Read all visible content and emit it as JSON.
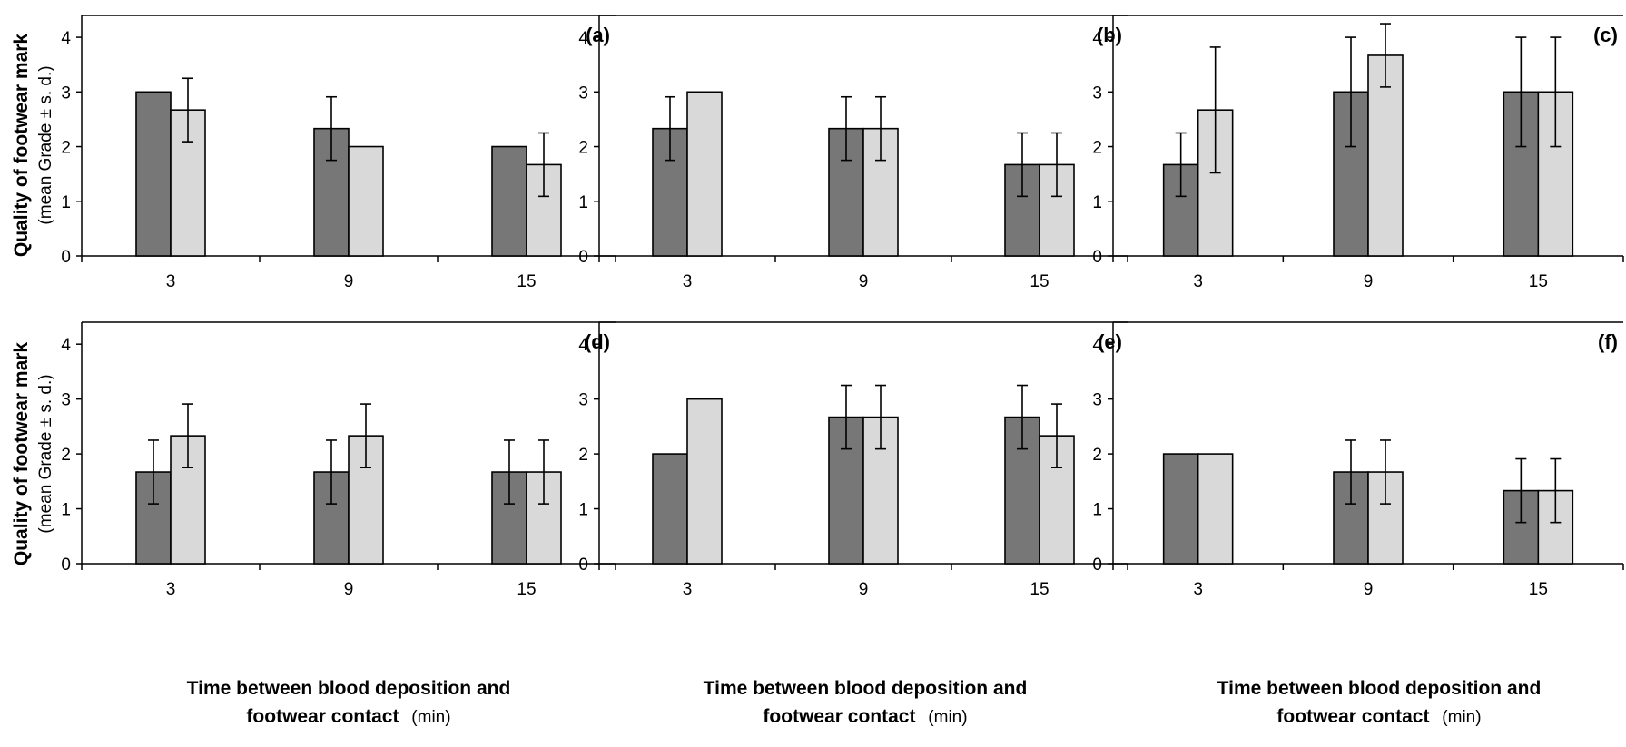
{
  "figure": {
    "ylabel_bold": "Quality of footwear mark",
    "ylabel_normal": "(mean Grade ± s. d.)",
    "xlabel_bold_line1": "Time between blood deposition and",
    "xlabel_bold_line2": "footwear contact",
    "xlabel_unit": "(min)"
  },
  "chart_data": [
    {
      "type": "bar",
      "panel_label": "(a)",
      "categories": [
        "3",
        "9",
        "15"
      ],
      "ylim": [
        0,
        4.4
      ],
      "yticks": [
        0,
        1,
        2,
        3,
        4
      ],
      "series": [
        {
          "color": "#777777",
          "values": [
            3.0,
            2.33,
            2.0
          ],
          "errors": [
            0,
            0.58,
            0
          ]
        },
        {
          "color": "#d9d9d9",
          "values": [
            2.67,
            2.0,
            1.67
          ],
          "errors": [
            0.58,
            0,
            0.58
          ]
        }
      ]
    },
    {
      "type": "bar",
      "panel_label": "(b)",
      "categories": [
        "3",
        "9",
        "15"
      ],
      "ylim": [
        0,
        4.4
      ],
      "yticks": [
        0,
        1,
        2,
        3,
        4
      ],
      "series": [
        {
          "color": "#777777",
          "values": [
            2.33,
            2.33,
            1.67
          ],
          "errors": [
            0.58,
            0.58,
            0.58
          ]
        },
        {
          "color": "#d9d9d9",
          "values": [
            3.0,
            2.33,
            1.67
          ],
          "errors": [
            0,
            0.58,
            0.58
          ]
        }
      ]
    },
    {
      "type": "bar",
      "panel_label": "(c)",
      "categories": [
        "3",
        "9",
        "15"
      ],
      "ylim": [
        0,
        4.4
      ],
      "yticks": [
        0,
        1,
        2,
        3,
        4
      ],
      "series": [
        {
          "color": "#777777",
          "values": [
            1.67,
            3.0,
            3.0
          ],
          "errors": [
            0.58,
            1.0,
            1.0
          ]
        },
        {
          "color": "#d9d9d9",
          "values": [
            2.67,
            3.67,
            3.0
          ],
          "errors": [
            1.15,
            0.58,
            1.0
          ]
        }
      ]
    },
    {
      "type": "bar",
      "panel_label": "(d)",
      "categories": [
        "3",
        "9",
        "15"
      ],
      "ylim": [
        0,
        4.4
      ],
      "yticks": [
        0,
        1,
        2,
        3,
        4
      ],
      "series": [
        {
          "color": "#777777",
          "values": [
            1.67,
            1.67,
            1.67
          ],
          "errors": [
            0.58,
            0.58,
            0.58
          ]
        },
        {
          "color": "#d9d9d9",
          "values": [
            2.33,
            2.33,
            1.67
          ],
          "errors": [
            0.58,
            0.58,
            0.58
          ]
        }
      ]
    },
    {
      "type": "bar",
      "panel_label": "(e)",
      "categories": [
        "3",
        "9",
        "15"
      ],
      "ylim": [
        0,
        4.4
      ],
      "yticks": [
        0,
        1,
        2,
        3,
        4
      ],
      "series": [
        {
          "color": "#777777",
          "values": [
            2.0,
            2.67,
            2.67
          ],
          "errors": [
            0,
            0.58,
            0.58
          ]
        },
        {
          "color": "#d9d9d9",
          "values": [
            3.0,
            2.67,
            2.33
          ],
          "errors": [
            0,
            0.58,
            0.58
          ]
        }
      ]
    },
    {
      "type": "bar",
      "panel_label": "(f)",
      "categories": [
        "3",
        "9",
        "15"
      ],
      "ylim": [
        0,
        4.4
      ],
      "yticks": [
        0,
        1,
        2,
        3,
        4
      ],
      "series": [
        {
          "color": "#777777",
          "values": [
            2.0,
            1.67,
            1.33
          ],
          "errors": [
            0,
            0.58,
            0.58
          ]
        },
        {
          "color": "#d9d9d9",
          "values": [
            2.0,
            1.67,
            1.33
          ],
          "errors": [
            0,
            0.58,
            0.58
          ]
        }
      ]
    }
  ]
}
